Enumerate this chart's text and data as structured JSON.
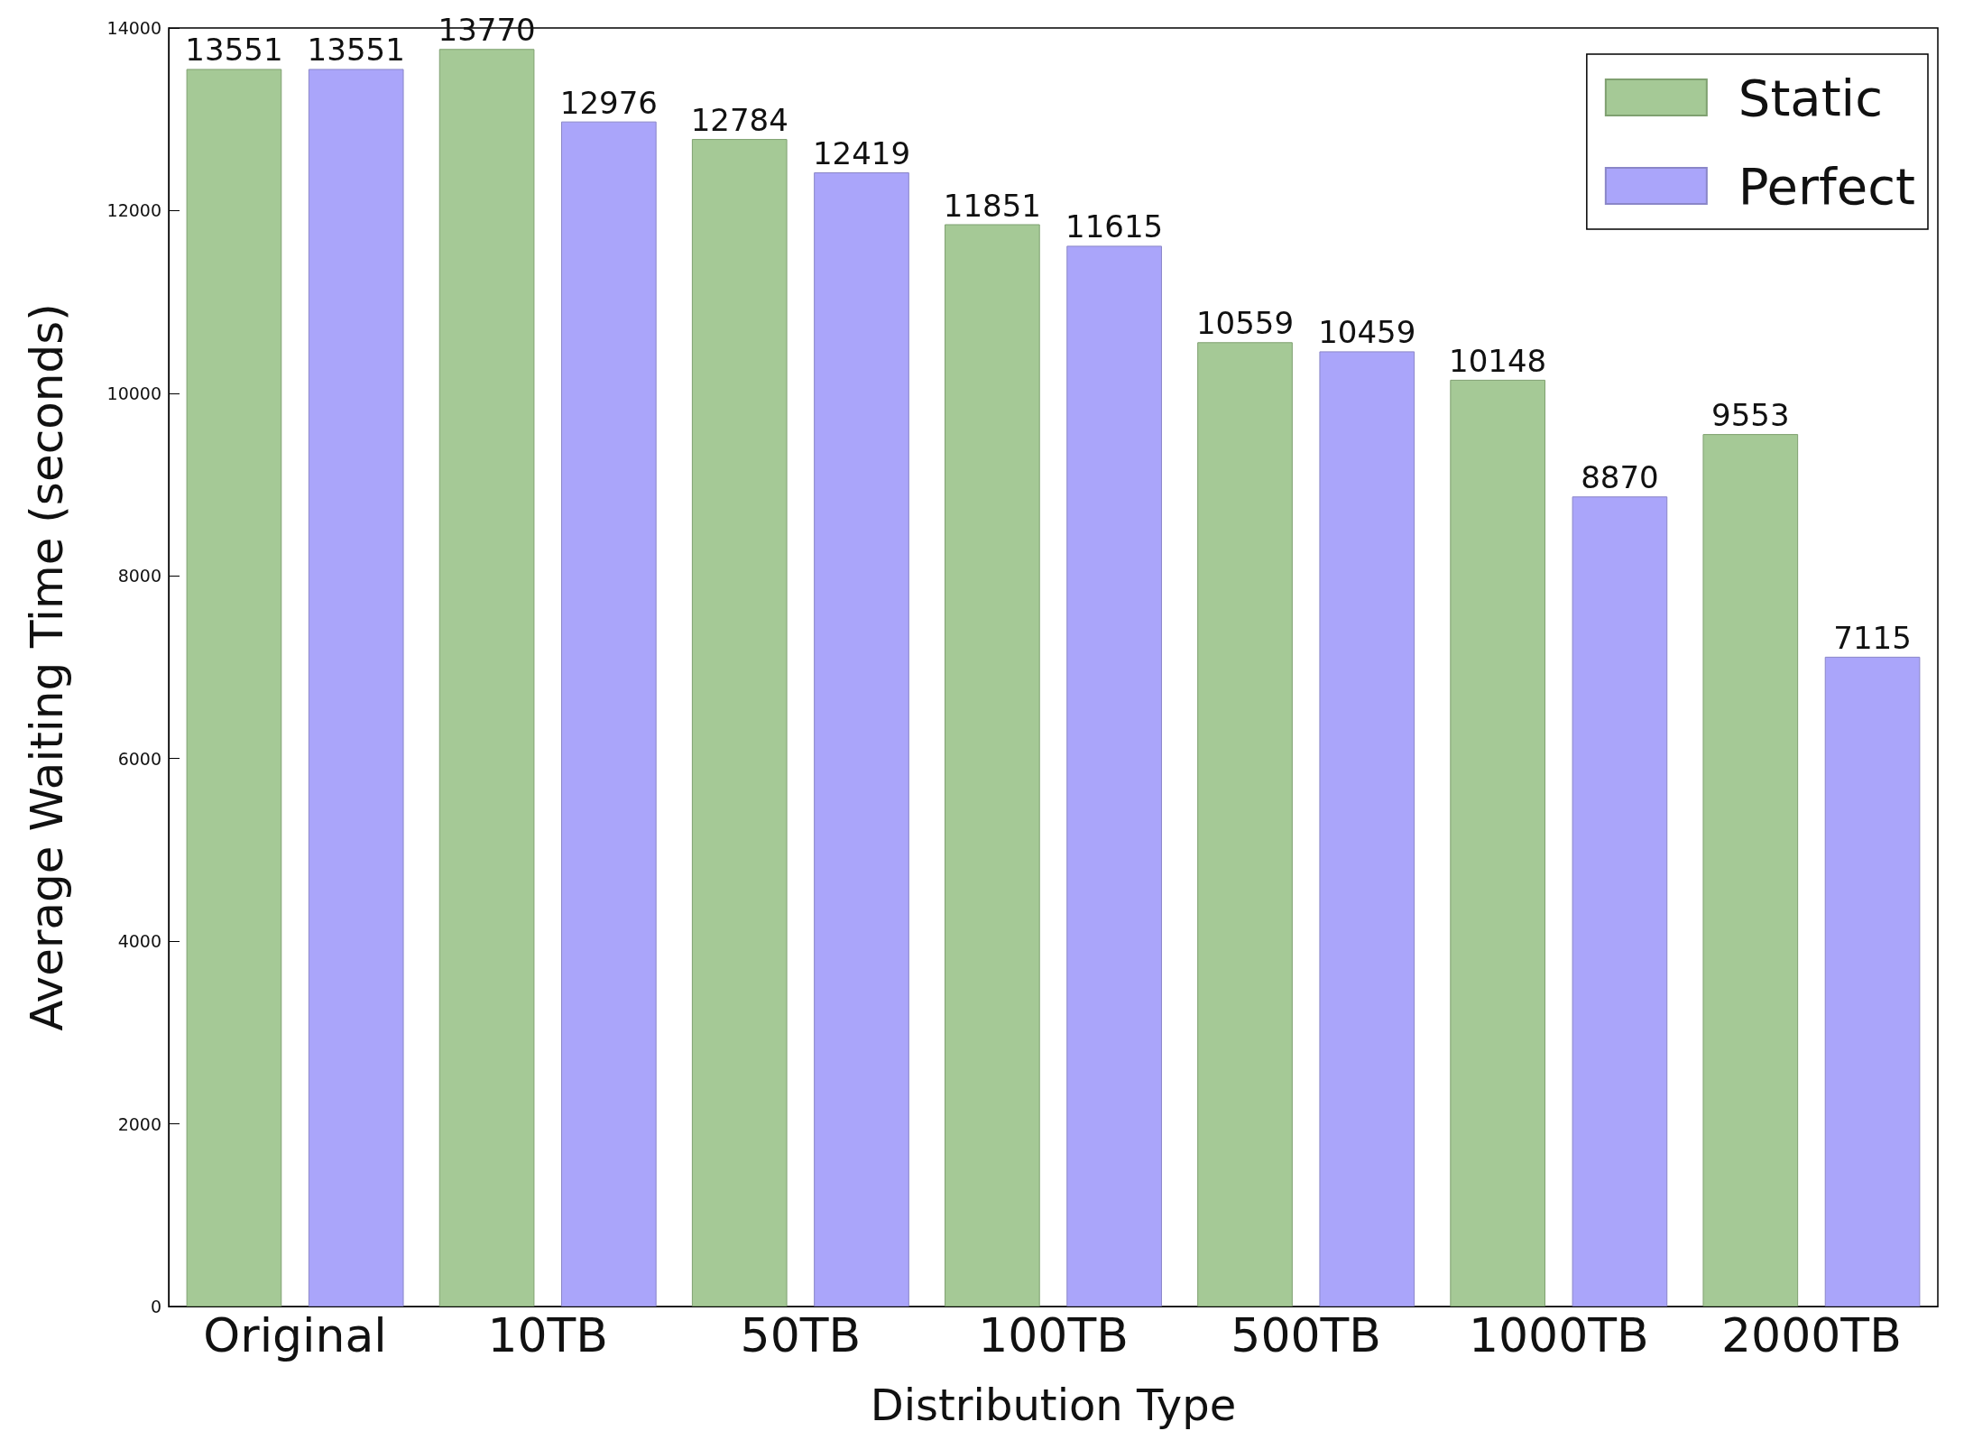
{
  "chart_data": {
    "type": "bar",
    "xlabel": "Distribution Type",
    "ylabel": "Average Waiting Time (seconds)",
    "categories": [
      "Original",
      "10TB",
      "50TB",
      "100TB",
      "500TB",
      "1000TB",
      "2000TB"
    ],
    "series": [
      {
        "name": "Static",
        "color": "#a5c996",
        "values": [
          13551,
          13770,
          12784,
          11851,
          10559,
          10148,
          9553
        ]
      },
      {
        "name": "Perfect",
        "color": "#aaa5fa",
        "values": [
          13551,
          12976,
          12419,
          11615,
          10459,
          8870,
          7115
        ]
      }
    ],
    "ylim": [
      0,
      14000
    ],
    "yticks": [
      0,
      2000,
      4000,
      6000,
      8000,
      10000,
      12000,
      14000
    ],
    "data_labels": true,
    "legend": "top right",
    "grid": false
  }
}
